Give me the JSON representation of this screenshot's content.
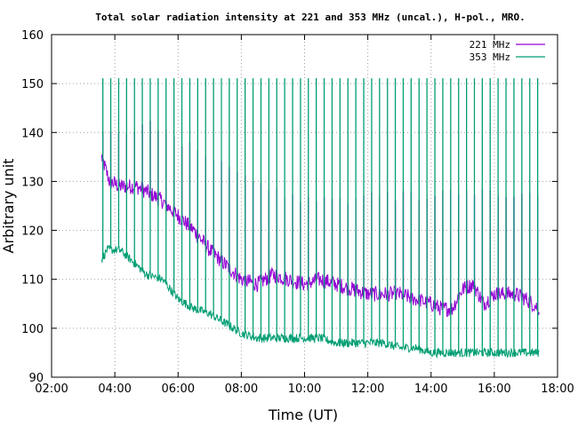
{
  "chart_data": {
    "type": "line",
    "title": "Total solar radiation intensity at 221 and 353 MHz (uncal.), H-pol., MRO.",
    "xlabel": "Time (UT)",
    "ylabel": "Arbitrary unit",
    "xlim": [
      "02:00",
      "18:00"
    ],
    "ylim": [
      90,
      160
    ],
    "x_ticks": [
      "02:00",
      "04:00",
      "06:00",
      "08:00",
      "10:00",
      "12:00",
      "14:00",
      "16:00",
      "18:00"
    ],
    "y_ticks": [
      90,
      100,
      110,
      120,
      130,
      140,
      150,
      160
    ],
    "grid": "dotted",
    "legend_position": "top-right",
    "series": [
      {
        "name": "221 MHz",
        "color": "#9400d3",
        "baseline": [
          [
            "03:35",
            135
          ],
          [
            "03:50",
            130
          ],
          [
            "04:10",
            129
          ],
          [
            "04:40",
            129
          ],
          [
            "05:00",
            128
          ],
          [
            "05:30",
            126
          ],
          [
            "06:00",
            123
          ],
          [
            "06:30",
            120
          ],
          [
            "07:00",
            116
          ],
          [
            "07:30",
            113
          ],
          [
            "08:00",
            110
          ],
          [
            "08:30",
            109
          ],
          [
            "09:00",
            111
          ],
          [
            "09:30",
            110
          ],
          [
            "10:00",
            109
          ],
          [
            "10:30",
            110
          ],
          [
            "11:00",
            109
          ],
          [
            "11:30",
            108
          ],
          [
            "12:00",
            107
          ],
          [
            "12:30",
            107
          ],
          [
            "13:00",
            107
          ],
          [
            "13:30",
            106
          ],
          [
            "14:00",
            105
          ],
          [
            "14:20",
            104
          ],
          [
            "14:40",
            104
          ],
          [
            "15:00",
            108
          ],
          [
            "15:20",
            109
          ],
          [
            "15:40",
            105
          ],
          [
            "16:00",
            107
          ],
          [
            "16:20",
            107
          ],
          [
            "16:40",
            107
          ],
          [
            "17:00",
            106
          ],
          [
            "17:25",
            104
          ]
        ],
        "spikes": [
          [
            "03:35",
            139
          ],
          [
            "04:10",
            140
          ],
          [
            "04:30",
            140
          ],
          [
            "05:00",
            142
          ],
          [
            "06:20",
            137
          ],
          [
            "06:45",
            136
          ],
          [
            "07:10",
            134
          ],
          [
            "07:40",
            132
          ],
          [
            "08:10",
            130
          ],
          [
            "09:00",
            128
          ],
          [
            "10:00",
            126
          ],
          [
            "11:00",
            126
          ],
          [
            "12:00",
            127
          ],
          [
            "13:00",
            127
          ],
          [
            "14:00",
            127
          ],
          [
            "15:00",
            128
          ],
          [
            "16:00",
            128
          ],
          [
            "17:00",
            127
          ]
        ]
      },
      {
        "name": "353 MHz",
        "color": "#009e73",
        "baseline": [
          [
            "03:35",
            114
          ],
          [
            "03:45",
            116
          ],
          [
            "04:10",
            116
          ],
          [
            "04:40",
            113
          ],
          [
            "05:00",
            111
          ],
          [
            "05:30",
            110
          ],
          [
            "06:00",
            106
          ],
          [
            "06:30",
            104
          ],
          [
            "07:00",
            103
          ],
          [
            "07:30",
            101
          ],
          [
            "08:00",
            99
          ],
          [
            "08:30",
            98
          ],
          [
            "09:00",
            98
          ],
          [
            "09:30",
            98
          ],
          [
            "10:00",
            98
          ],
          [
            "10:30",
            98
          ],
          [
            "11:00",
            97
          ],
          [
            "11:30",
            97
          ],
          [
            "12:00",
            97
          ],
          [
            "12:30",
            97
          ],
          [
            "13:00",
            96
          ],
          [
            "13:30",
            96
          ],
          [
            "14:00",
            95
          ],
          [
            "14:30",
            95
          ],
          [
            "15:00",
            95
          ],
          [
            "15:30",
            95
          ],
          [
            "16:00",
            95
          ],
          [
            "16:30",
            95
          ],
          [
            "17:00",
            95
          ],
          [
            "17:25",
            95
          ]
        ],
        "spike_peak": 151,
        "spike_interval_minutes": 15,
        "spike_start": "03:37",
        "spike_end": "17:25"
      }
    ]
  }
}
